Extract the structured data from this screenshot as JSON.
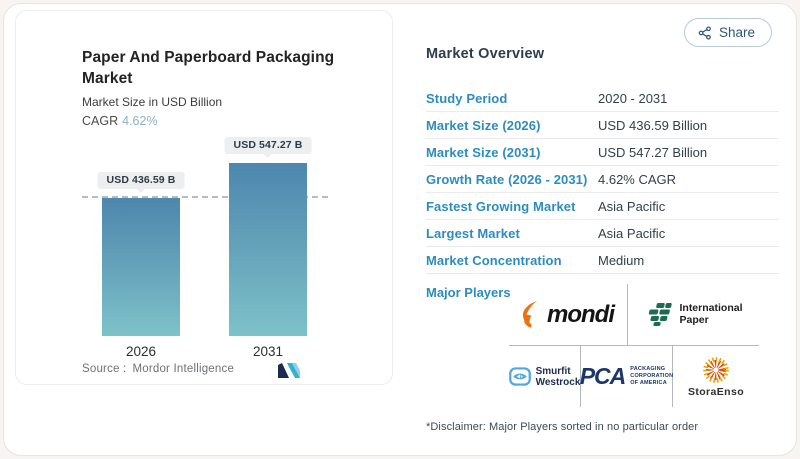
{
  "share": {
    "label": "Share"
  },
  "chart_panel": {
    "title": "Paper And Paperboard Packaging Market",
    "subtitle": "Market Size in USD Billion",
    "cagr_label": "CAGR",
    "cagr_value": "4.62%",
    "source_label": "Source :",
    "source_value": "Mordor Intelligence"
  },
  "chart_data": {
    "type": "bar",
    "categories": [
      "2026",
      "2031"
    ],
    "values": [
      436.59,
      547.27
    ],
    "bar_labels": [
      "USD 436.59 B",
      "USD 547.27 B"
    ],
    "title": "Paper And Paperboard Packaging Market",
    "ylabel": "Market Size in USD Billion",
    "ylim": [
      0,
      547.27
    ],
    "reference_line": {
      "y": 436.59,
      "style": "dashed"
    },
    "legend": "none",
    "grid": "off",
    "bar_gradient_top": "#4d87ae",
    "bar_gradient_bottom": "#7ec2c9"
  },
  "overview": {
    "heading": "Market Overview",
    "rows": [
      {
        "label": "Study Period",
        "value": "2020 - 2031"
      },
      {
        "label": "Market Size (2026)",
        "value": "USD 436.59 Billion"
      },
      {
        "label": "Market Size (2031)",
        "value": "USD 547.27 Billion"
      },
      {
        "label": "Growth Rate (2026 - 2031)",
        "value": "4.62% CAGR"
      },
      {
        "label": "Fastest Growing Market",
        "value": "Asia Pacific"
      },
      {
        "label": "Largest Market",
        "value": "Asia Pacific"
      },
      {
        "label": "Market Concentration",
        "value": "Medium"
      }
    ],
    "major_players_label": "Major Players",
    "major_players": [
      "mondi",
      "International Paper",
      "Smurfit Westrock",
      "Packaging Corporation of America",
      "StoraEnso"
    ],
    "disclaimer": "*Disclaimer: Major Players sorted in no particular order"
  },
  "logos": {
    "mondi": {
      "text": "mondi"
    },
    "international_paper": {
      "line1": "International",
      "line2": "Paper"
    },
    "smurfit_westrock": {
      "line1": "Smurfit",
      "line2": "Westrock"
    },
    "pca": {
      "text": "PCA",
      "sub1": "PACKAGING",
      "sub2": "CORPORATION",
      "sub3": "OF AMERICA"
    },
    "stora_enso": {
      "text": "StoraEnso"
    }
  },
  "colors": {
    "accent_blue": "#2d8cbe",
    "value_text": "#333f4b",
    "cagr_value": "#8cb2c9",
    "bar_top": "#4d87ae",
    "bar_bottom": "#7ec2c9",
    "pill_bg": "#eceef0",
    "mondi_orange": "#ef7010",
    "ip_green": "#1c6b52",
    "smurfit_blue": "#4fa8d5",
    "pca_navy": "#1b3668",
    "stora_orange": "#f09c00",
    "mi_logo_navy": "#1d2b50",
    "mi_logo_teal": "#35b0d2"
  }
}
